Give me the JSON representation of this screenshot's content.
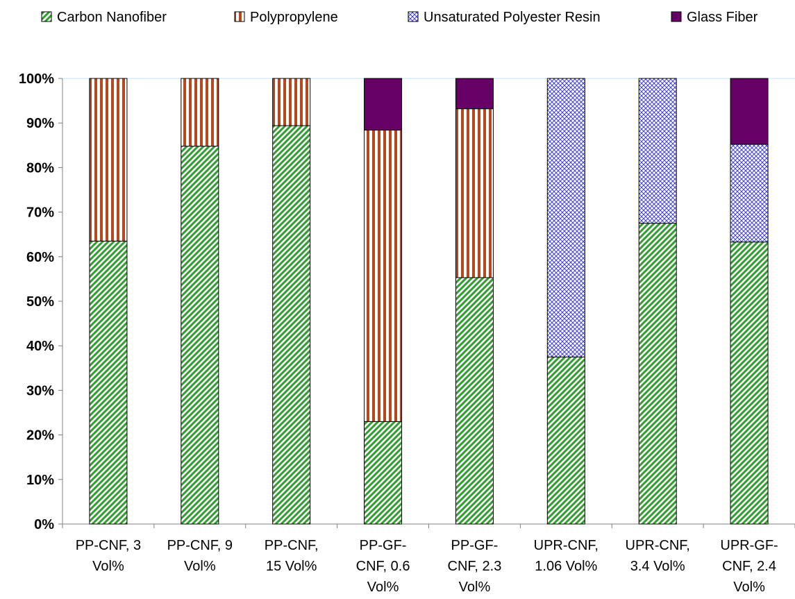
{
  "chart_data": {
    "type": "bar",
    "stacked": true,
    "percent_stacked": true,
    "categories": [
      [
        "PP-CNF, 3",
        "Vol%"
      ],
      [
        "PP-CNF, 9",
        "Vol%"
      ],
      [
        "PP-CNF,",
        "15 Vol%"
      ],
      [
        "PP-GF-",
        "CNF, 0.6",
        "Vol%"
      ],
      [
        "PP-GF-",
        "CNF, 2.3",
        "Vol%"
      ],
      [
        "UPR-CNF,",
        "1.06 Vol%"
      ],
      [
        "UPR-CNF,",
        "3.4 Vol%"
      ],
      [
        "UPR-GF-",
        "CNF, 2.4",
        "Vol%"
      ]
    ],
    "series": [
      {
        "name": "Carbon Nanofiber",
        "pattern": "diagonal",
        "color": "#2e9e2e",
        "values": [
          63.5,
          84.8,
          89.4,
          23.0,
          55.3,
          37.5,
          67.5,
          63.3
        ]
      },
      {
        "name": "Polypropylene",
        "pattern": "vertical",
        "color": "#b5491d",
        "values": [
          36.5,
          15.2,
          10.6,
          65.4,
          37.9,
          0,
          0,
          0
        ]
      },
      {
        "name": "Unsaturated Polyester Resin",
        "pattern": "crosshatch",
        "color": "#3f3fdc",
        "values": [
          0,
          0,
          0,
          0,
          0,
          62.5,
          32.5,
          21.9
        ]
      },
      {
        "name": "Glass Fiber",
        "pattern": "solid",
        "color": "#660066",
        "values": [
          0,
          0,
          0,
          11.6,
          6.8,
          0,
          0,
          14.8
        ]
      }
    ],
    "yticks": [
      "0%",
      "10%",
      "20%",
      "30%",
      "40%",
      "50%",
      "60%",
      "70%",
      "80%",
      "90%",
      "100%"
    ],
    "ylim": [
      0,
      100
    ],
    "legend_position": "top",
    "grid": false
  }
}
